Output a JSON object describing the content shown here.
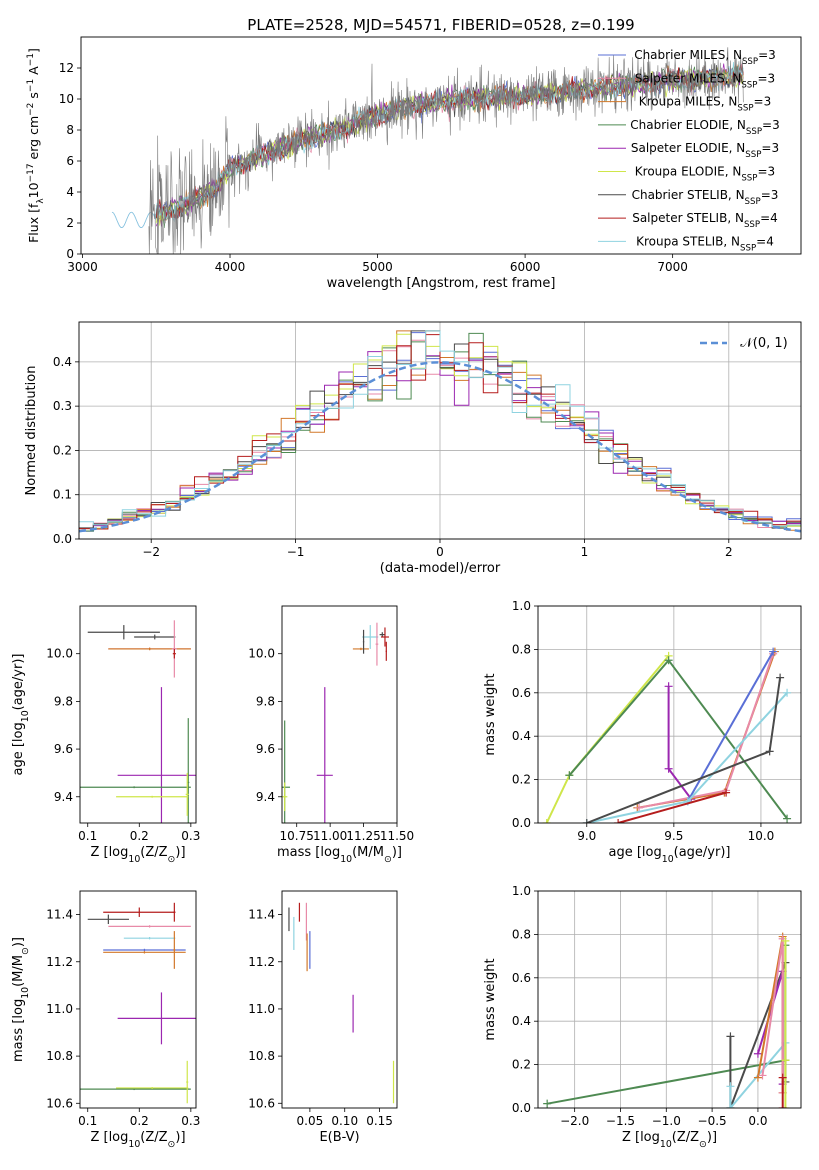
{
  "title": "PLATE=2528, MJD=54571, FIBERID=0528, z=0.199",
  "colors": {
    "chabrier_miles": "#5a6fd6",
    "salpeter_miles": "#e88aa8",
    "kroupa_miles": "#d2782a",
    "chabrier_elodie": "#4e8a52",
    "salpeter_elodie": "#9b27b0",
    "kroupa_elodie": "#cfe64a",
    "chabrier_stelib": "#4a4a4a",
    "salpeter_stelib": "#b51d1d",
    "kroupa_stelib": "#8fd3e0",
    "normal_curve": "#5b8fd6",
    "grid": "#b0b0b0"
  },
  "chart_data": [
    {
      "id": "spectrum",
      "type": "line",
      "xlabel": "wavelength [Angstrom, rest frame]",
      "ylabel": "Flux [f",
      "ylabel_sub": "λ",
      "ylabel_rest": "10",
      "ylabel_sup": "−17",
      "ylabel_rest2": " erg cm",
      "ylabel_sup2": "−2",
      "ylabel_rest3": " s",
      "ylabel_sup3": "−1",
      "ylabel_rest4": " A",
      "ylabel_sup4": "−1",
      "ylabel_end": "]",
      "xlim": [
        2990,
        7870
      ],
      "ylim": [
        0,
        14
      ],
      "xticks": [
        "3000",
        "4000",
        "5000",
        "6000",
        "7000"
      ],
      "yticks": [
        "0",
        "2",
        "4",
        "6",
        "8",
        "10",
        "12"
      ],
      "legend": [
        {
          "label": "Chabrier MILES, N",
          "sub": "SSP",
          "suffix": "=3"
        },
        {
          "label": "Salpeter MILES, N",
          "sub": "SSP",
          "suffix": "=3"
        },
        {
          "label": "Kroupa MILES, N",
          "sub": "SSP",
          "suffix": "=3"
        },
        {
          "label": "Chabrier ELODIE, N",
          "sub": "SSP",
          "suffix": "=3"
        },
        {
          "label": "Salpeter ELODIE, N",
          "sub": "SSP",
          "suffix": "=3"
        },
        {
          "label": "Kroupa ELODIE, N",
          "sub": "SSP",
          "suffix": "=3"
        },
        {
          "label": "Chabrier STELIB, N",
          "sub": "SSP",
          "suffix": "=3"
        },
        {
          "label": "Salpeter STELIB, N",
          "sub": "SSP",
          "suffix": "=4"
        },
        {
          "label": "Kroupa STELIB, N",
          "sub": "SSP",
          "suffix": "=4"
        }
      ],
      "continuum": {
        "x": [
          3200,
          3500,
          3700,
          3900,
          4000,
          4200,
          4500,
          4800,
          5000,
          5200,
          5500,
          6000,
          6500,
          7000,
          7500,
          7800
        ],
        "y": [
          2.0,
          2.5,
          3.2,
          4.2,
          5.5,
          6.3,
          7.4,
          8.2,
          9.0,
          9.5,
          9.9,
          10.2,
          10.7,
          11.2,
          11.5,
          11.8
        ]
      },
      "data_range": [
        3450,
        7480
      ],
      "model_range": [
        3200,
        7480
      ],
      "series_colors_order": [
        "chabrier_miles",
        "salpeter_miles",
        "kroupa_miles",
        "chabrier_elodie",
        "salpeter_elodie",
        "kroupa_elodie",
        "chabrier_stelib",
        "salpeter_stelib",
        "kroupa_stelib"
      ]
    },
    {
      "id": "residuals",
      "type": "histogram",
      "xlabel": "(data-model)/error",
      "ylabel": "Normed distribution",
      "xlim": [
        -2.5,
        2.5
      ],
      "ylim": [
        0,
        0.49
      ],
      "xticks": [
        "−2",
        "−1",
        "0",
        "1",
        "2"
      ],
      "yticks": [
        "0.0",
        "0.1",
        "0.2",
        "0.3",
        "0.4"
      ],
      "legend_label": "𝒩(0, 1)",
      "bin_width": 0.1,
      "bin_start": -2.5,
      "normal_mean": 0,
      "normal_sigma": 1
    },
    {
      "id": "z_age",
      "type": "scatter",
      "xlabel": "Z [log",
      "xlabel_sub": "10",
      "xlabel_rest": "(Z/Z",
      "xlabel_sub2": "⊙",
      "xlabel_end": ")]",
      "ylabel": "age  [log",
      "ylabel_sub": "10",
      "ylabel_rest": "(age/yr)]",
      "xlim": [
        0.085,
        0.31
      ],
      "ylim": [
        9.29,
        10.2
      ],
      "xticks": [
        "0.1",
        "0.2",
        "0.3"
      ],
      "yticks": [
        "9.4",
        "9.6",
        "9.8",
        "10.0"
      ],
      "points": [
        {
          "series": "chabrier_stelib",
          "x": 0.17,
          "y": 10.09,
          "xerr": 0.07,
          "yerr": 0.03
        },
        {
          "series": "chabrier_stelib",
          "x": 0.23,
          "y": 10.07,
          "xerr": 0.04,
          "yerr": 0.01
        },
        {
          "series": "salpeter_stelib",
          "x": 0.22,
          "y": 10.02,
          "xerr": 0.08,
          "yerr": 0.005
        },
        {
          "series": "kroupa_miles",
          "x": 0.22,
          "y": 10.02,
          "xerr": 0.08,
          "yerr": 0.005
        },
        {
          "series": "salpeter_miles",
          "x": 0.268,
          "y": 10.02,
          "xerr": 0.005,
          "yerr": 0.12
        },
        {
          "series": "salpeter_stelib",
          "x": 0.268,
          "y": 10.0,
          "xerr": 0.003,
          "yerr": 0.02
        },
        {
          "series": "salpeter_elodie",
          "x": 0.243,
          "y": 9.49,
          "xerr": 0.085,
          "yerr": 0.37
        },
        {
          "series": "chabrier_elodie",
          "x": 0.19,
          "y": 9.44,
          "xerr": 0.11,
          "yerr": 0.004
        },
        {
          "series": "chabrier_elodie",
          "x": 0.295,
          "y": 9.46,
          "xerr": 0.002,
          "yerr": 0.27
        },
        {
          "series": "kroupa_elodie",
          "x": 0.225,
          "y": 9.4,
          "xerr": 0.07,
          "yerr": 0.004
        },
        {
          "series": "kroupa_elodie",
          "x": 0.293,
          "y": 9.41,
          "xerr": 0.003,
          "yerr": 0.09
        }
      ]
    },
    {
      "id": "mass_age",
      "type": "scatter",
      "xlabel": "mass [log",
      "xlabel_sub": "10",
      "xlabel_rest": "(M/M",
      "xlabel_sub2": "⊙",
      "xlabel_end": ")]",
      "xlim": [
        10.64,
        11.5
      ],
      "ylim": [
        9.29,
        10.2
      ],
      "xticks": [
        "10.75",
        "11.00",
        "11.25",
        "11.50"
      ],
      "yticks": [
        "9.4",
        "9.6",
        "9.8",
        "10.0"
      ],
      "points": [
        {
          "series": "chabrier_stelib",
          "x": 11.39,
          "y": 10.08,
          "xerr": 0.02,
          "yerr": 0.01
        },
        {
          "series": "salpeter_stelib",
          "x": 11.41,
          "y": 10.07,
          "xerr": 0.03,
          "yerr": 0.04
        },
        {
          "series": "kroupa_stelib",
          "x": 11.3,
          "y": 10.07,
          "xerr": 0.06,
          "yerr": 0.05
        },
        {
          "series": "salpeter_miles",
          "x": 11.35,
          "y": 10.04,
          "xerr": 0.01,
          "yerr": 0.09
        },
        {
          "series": "kroupa_miles",
          "x": 11.23,
          "y": 10.02,
          "xerr": 0.06,
          "yerr": 0.005
        },
        {
          "series": "chabrier_stelib",
          "x": 11.25,
          "y": 10.05,
          "xerr": 0.005,
          "yerr": 0.05
        },
        {
          "series": "salpeter_stelib",
          "x": 11.42,
          "y": 10.01,
          "xerr": 0.005,
          "yerr": 0.04
        },
        {
          "series": "salpeter_elodie",
          "x": 10.96,
          "y": 9.49,
          "xerr": 0.06,
          "yerr": 0.37
        },
        {
          "series": "chabrier_elodie",
          "x": 10.66,
          "y": 9.44,
          "xerr": 0.04,
          "yerr": 0.28
        },
        {
          "series": "kroupa_elodie",
          "x": 10.66,
          "y": 9.4,
          "xerr": 0.02,
          "yerr": 0.06
        }
      ]
    },
    {
      "id": "age_weight",
      "type": "line",
      "xlabel": "age  [log",
      "xlabel_sub": "10",
      "xlabel_rest": "(age/yr)]",
      "ylabel": "mass weight",
      "xlim": [
        8.72,
        10.23
      ],
      "ylim": [
        0,
        1
      ],
      "xticks": [
        "9.0",
        "9.5",
        "10.0"
      ],
      "yticks": [
        "0.0",
        "0.2",
        "0.4",
        "0.6",
        "0.8",
        "1.0"
      ],
      "series": [
        {
          "name": "kroupa_elodie",
          "x": [
            8.77,
            8.9,
            9.47
          ],
          "y": [
            0.0,
            0.22,
            0.77
          ]
        },
        {
          "name": "chabrier_elodie",
          "x": [
            8.9,
            9.47,
            10.15
          ],
          "y": [
            0.22,
            0.75,
            0.02
          ]
        },
        {
          "name": "salpeter_elodie",
          "x": [
            9.47,
            9.47,
            9.6
          ],
          "y": [
            0.63,
            0.25,
            0.11
          ]
        },
        {
          "name": "kroupa_miles",
          "x": [
            9.29,
            9.79,
            10.08
          ],
          "y": [
            0.07,
            0.14,
            0.79
          ]
        },
        {
          "name": "salpeter_miles",
          "x": [
            9.3,
            9.8,
            10.07
          ],
          "y": [
            0.07,
            0.15,
            0.78
          ]
        },
        {
          "name": "chabrier_miles",
          "x": [
            9.58,
            10.07
          ],
          "y": [
            0.1,
            0.79
          ]
        },
        {
          "name": "kroupa_stelib",
          "x": [
            9.0,
            9.58,
            10.15
          ],
          "y": [
            0.0,
            0.1,
            0.6
          ]
        },
        {
          "name": "chabrier_stelib",
          "x": [
            9.0,
            10.05,
            10.11
          ],
          "y": [
            0.0,
            0.33,
            0.67
          ]
        },
        {
          "name": "salpeter_stelib",
          "x": [
            9.18,
            9.8
          ],
          "y": [
            0.0,
            0.14
          ]
        }
      ]
    },
    {
      "id": "z_mass",
      "type": "scatter",
      "xlabel": "Z [log",
      "xlabel_sub": "10",
      "xlabel_rest": "(Z/Z",
      "xlabel_sub2": "⊙",
      "xlabel_end": ")]",
      "ylabel": "mass [log",
      "ylabel_sub": "10",
      "ylabel_rest": "(M/M",
      "ylabel_sub2": "⊙",
      "ylabel_end": ")]",
      "xlim": [
        0.085,
        0.31
      ],
      "ylim": [
        10.58,
        11.5
      ],
      "xticks": [
        "0.1",
        "0.2",
        "0.3"
      ],
      "yticks": [
        "10.6",
        "10.8",
        "11.0",
        "11.2",
        "11.4"
      ],
      "points": [
        {
          "series": "salpeter_stelib",
          "x": 0.2,
          "y": 11.41,
          "xerr": 0.07,
          "yerr": 0.02
        },
        {
          "series": "salpeter_stelib",
          "x": 0.268,
          "y": 11.41,
          "xerr": 0.002,
          "yerr": 0.04
        },
        {
          "series": "chabrier_stelib",
          "x": 0.14,
          "y": 11.38,
          "xerr": 0.04,
          "yerr": 0.02
        },
        {
          "series": "salpeter_miles",
          "x": 0.22,
          "y": 11.35,
          "xerr": 0.08,
          "yerr": 0.005
        },
        {
          "series": "kroupa_stelib",
          "x": 0.22,
          "y": 11.3,
          "xerr": 0.05,
          "yerr": 0.005
        },
        {
          "series": "chabrier_miles",
          "x": 0.21,
          "y": 11.25,
          "xerr": 0.08,
          "yerr": 0.005
        },
        {
          "series": "kroupa_miles",
          "x": 0.21,
          "y": 11.24,
          "xerr": 0.08,
          "yerr": 0.005
        },
        {
          "series": "kroupa_miles",
          "x": 0.268,
          "y": 11.25,
          "xerr": 0.002,
          "yerr": 0.08
        },
        {
          "series": "salpeter_elodie",
          "x": 0.243,
          "y": 10.96,
          "xerr": 0.085,
          "yerr": 0.11
        },
        {
          "series": "chabrier_elodie",
          "x": 0.19,
          "y": 10.66,
          "xerr": 0.11,
          "yerr": 0.004
        },
        {
          "series": "kroupa_elodie",
          "x": 0.225,
          "y": 10.665,
          "xerr": 0.07,
          "yerr": 0.004
        },
        {
          "series": "kroupa_elodie",
          "x": 0.293,
          "y": 10.69,
          "xerr": 0.002,
          "yerr": 0.09
        }
      ]
    },
    {
      "id": "ebv_mass",
      "type": "scatter",
      "xlabel": "E(B-V)",
      "xlim": [
        0.01,
        0.175
      ],
      "ylim": [
        10.58,
        11.5
      ],
      "xticks": [
        "0.05",
        "0.10",
        "0.15"
      ],
      "yticks": [
        "10.6",
        "10.8",
        "11.0",
        "11.2",
        "11.4"
      ],
      "points": [
        {
          "series": "chabrier_stelib",
          "x": 0.02,
          "y": 11.38,
          "yerr": 0.05
        },
        {
          "series": "salpeter_stelib",
          "x": 0.035,
          "y": 11.41,
          "yerr": 0.04
        },
        {
          "series": "kroupa_stelib",
          "x": 0.027,
          "y": 11.32,
          "yerr": 0.07
        },
        {
          "series": "salpeter_miles",
          "x": 0.045,
          "y": 11.37,
          "yerr": 0.08
        },
        {
          "series": "kroupa_miles",
          "x": 0.046,
          "y": 11.24,
          "yerr": 0.08
        },
        {
          "series": "chabrier_miles",
          "x": 0.05,
          "y": 11.25,
          "yerr": 0.08
        },
        {
          "series": "salpeter_elodie",
          "x": 0.112,
          "y": 10.98,
          "yerr": 0.08
        },
        {
          "series": "kroupa_elodie",
          "x": 0.17,
          "y": 10.69,
          "yerr": 0.09
        }
      ]
    },
    {
      "id": "z_weight",
      "type": "line",
      "xlabel": "Z [log",
      "xlabel_sub": "10",
      "xlabel_rest": "(Z/Z",
      "xlabel_sub2": "⊙",
      "xlabel_end": ")]",
      "ylabel": "mass weight",
      "xlim": [
        -2.4,
        0.47
      ],
      "ylim": [
        0,
        1
      ],
      "xticks": [
        "−2.0",
        "−1.5",
        "−1.0",
        "−0.5",
        "0.0"
      ],
      "yticks": [
        "0.0",
        "0.2",
        "0.4",
        "0.6",
        "0.8",
        "1.0"
      ],
      "series": [
        {
          "name": "chabrier_elodie",
          "x": [
            -2.3,
            0.3,
            0.3
          ],
          "y": [
            0.02,
            0.22,
            0.75
          ]
        },
        {
          "name": "chabrier_stelib",
          "x": [
            -0.3,
            -0.3,
            0.3,
            0.3
          ],
          "y": [
            0.33,
            0.0,
            0.67,
            0.12
          ]
        },
        {
          "name": "kroupa_stelib",
          "x": [
            -0.3,
            -0.3,
            0.3,
            0.3
          ],
          "y": [
            0.1,
            0.0,
            0.3,
            0.6
          ]
        },
        {
          "name": "salpeter_elodie",
          "x": [
            0.0,
            0.27,
            0.27
          ],
          "y": [
            0.25,
            0.63,
            0.11
          ]
        },
        {
          "name": "kroupa_miles",
          "x": [
            0.0,
            0.27,
            0.27
          ],
          "y": [
            0.14,
            0.79,
            0.07
          ]
        },
        {
          "name": "salpeter_miles",
          "x": [
            0.05,
            0.27,
            0.27
          ],
          "y": [
            0.15,
            0.78,
            0.07
          ]
        },
        {
          "name": "kroupa_elodie",
          "x": [
            0.3,
            0.3,
            0.3
          ],
          "y": [
            0.0,
            0.22,
            0.77
          ]
        },
        {
          "name": "salpeter_stelib",
          "x": [
            0.27,
            0.27
          ],
          "y": [
            0.0,
            0.14
          ]
        }
      ]
    }
  ]
}
